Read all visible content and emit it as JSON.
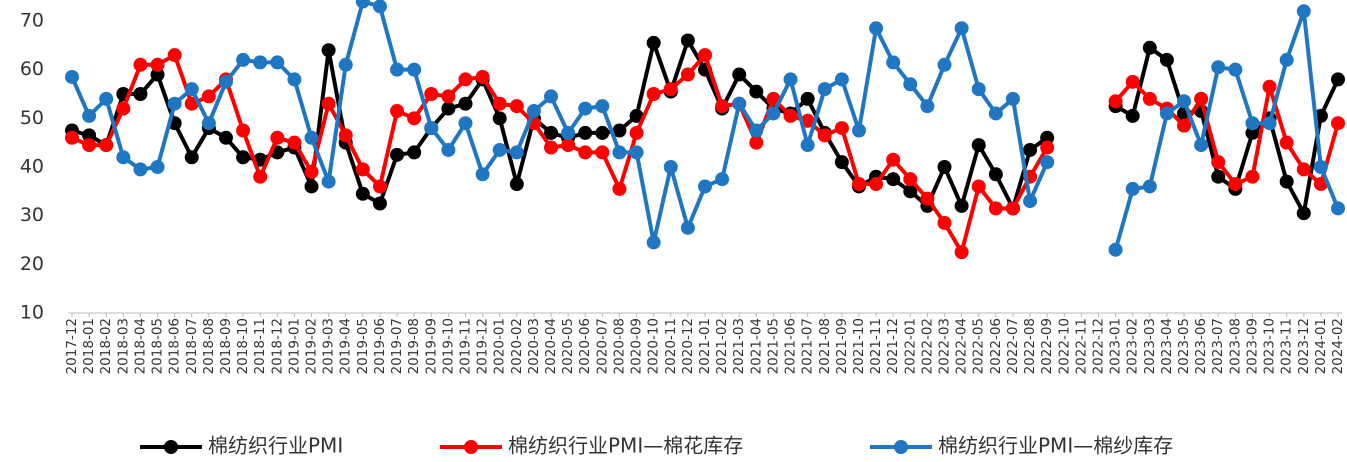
{
  "chart_data": {
    "type": "line",
    "categories": [
      "2017-12",
      "2018-01",
      "2018-02",
      "2018-03",
      "2018-04",
      "2018-05",
      "2018-06",
      "2018-07",
      "2018-08",
      "2018-09",
      "2018-10",
      "2018-11",
      "2018-12",
      "2019-01",
      "2019-02",
      "2019-03",
      "2019-04",
      "2019-05",
      "2019-06",
      "2019-07",
      "2019-08",
      "2019-09",
      "2019-10",
      "2019-11",
      "2019-12",
      "2020-01",
      "2020-02",
      "2020-03",
      "2020-04",
      "2020-05",
      "2020-06",
      "2020-07",
      "2020-08",
      "2020-09",
      "2020-10",
      "2020-11",
      "2020-12",
      "2021-01",
      "2021-02",
      "2021-03",
      "2021-04",
      "2021-05",
      "2021-06",
      "2021-07",
      "2021-08",
      "2021-09",
      "2021-10",
      "2021-11",
      "2021-12",
      "2022-01",
      "2022-02",
      "2022-03",
      "2022-04",
      "2022-05",
      "2022-06",
      "2022-07",
      "2022-08",
      "2022-09",
      "2022-10",
      "2022-11",
      "2022-12",
      "2023-01",
      "2023-02",
      "2023-03",
      "2023-04",
      "2023-05",
      "2023-06",
      "2023-07",
      "2023-08",
      "2023-09",
      "2023-10",
      "2023-11",
      "2023-12",
      "2024-01",
      "2024-02"
    ],
    "series": [
      {
        "name": "棉纺织行业PMI",
        "color": "#000000",
        "values": [
          47.5,
          46.5,
          44.5,
          55,
          55,
          59,
          49,
          42,
          48,
          46,
          42,
          41.5,
          43,
          44,
          36,
          64,
          45,
          34.5,
          32.5,
          42.5,
          43,
          48,
          52,
          53,
          58,
          50,
          36.5,
          50,
          47,
          46,
          47,
          47,
          47.5,
          50.5,
          65.5,
          55.5,
          66,
          60,
          52,
          59,
          55.5,
          52,
          51,
          54,
          47,
          41,
          36,
          38,
          37.5,
          35,
          32,
          40,
          32,
          44.5,
          38.5,
          31.5,
          43.5,
          46,
          null,
          null,
          null,
          52.5,
          50.5,
          64.5,
          62,
          51,
          51.5,
          38,
          35.5,
          47,
          50,
          37,
          30.5,
          50.5,
          58
        ]
      },
      {
        "name": "棉纺织行业PMI—棉花库存",
        "color": "#ff0000",
        "values": [
          46,
          44.5,
          44.5,
          52,
          61,
          61,
          63,
          53,
          54.5,
          58,
          47.5,
          38,
          46,
          45,
          39,
          53,
          46.5,
          39.5,
          36,
          51.5,
          50,
          55,
          54.5,
          58,
          58.5,
          53,
          52.5,
          49,
          44,
          44.5,
          43,
          43,
          35.5,
          47,
          55,
          56,
          59,
          63,
          52.5,
          53,
          45,
          54,
          50.5,
          49.5,
          46.5,
          48,
          36.5,
          36.5,
          41.5,
          37.5,
          33.5,
          28.5,
          22.5,
          36,
          31.5,
          31.5,
          38,
          44,
          null,
          null,
          null,
          53.5,
          57.5,
          54,
          52,
          48.5,
          54,
          41,
          36.5,
          38,
          56.5,
          45,
          39.5,
          36.5,
          49
        ]
      },
      {
        "name": "棉纺织行业PMI—棉纱库存",
        "color": "#1f77c4",
        "values": [
          58.5,
          50.5,
          54,
          42,
          39.5,
          40,
          53,
          56,
          49,
          57.5,
          62,
          61.5,
          61.5,
          58,
          46,
          37,
          61,
          74,
          73,
          60,
          60,
          48,
          43.5,
          49,
          38.5,
          43.5,
          43,
          51.5,
          54.5,
          47,
          52,
          52.5,
          43,
          43,
          24.5,
          40,
          27.5,
          36,
          37.5,
          53,
          47.5,
          51,
          58,
          44.5,
          56,
          58,
          47.5,
          68.5,
          61.5,
          57,
          52.5,
          61,
          68.5,
          56,
          51,
          54,
          33,
          41,
          null,
          null,
          null,
          23,
          35.5,
          36,
          51,
          53.5,
          44.5,
          60.5,
          60,
          49,
          49,
          62,
          72,
          40,
          31.5
        ]
      }
    ],
    "ylim": [
      10,
      75
    ],
    "yticks": [
      10,
      20,
      30,
      40,
      50,
      60,
      70
    ],
    "grid": false,
    "legend": "bottom"
  }
}
